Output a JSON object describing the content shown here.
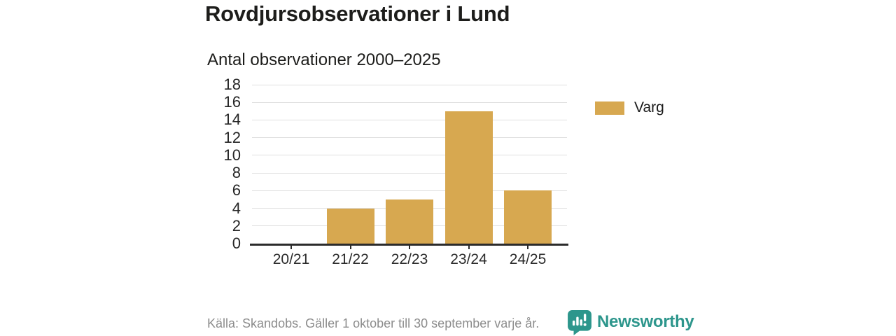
{
  "title": "Rovdjursobservationer i Lund",
  "subtitle": "Antal observationer 2000–2025",
  "legend": {
    "items": [
      {
        "label": "Varg",
        "color": "#d7a850"
      }
    ]
  },
  "footer": {
    "source": "Källa: Skandobs. Gäller 1 oktober till 30 september varje år.",
    "brand": "Newsworthy"
  },
  "colors": {
    "bar_gold": "#d7a850",
    "brand_teal": "#2d968c",
    "grid": "#e0e0e0",
    "axis": "#2b2b2b",
    "text_dark": "#1d1d1b",
    "text_muted": "#8c8c8c"
  },
  "chart_data": {
    "type": "bar",
    "categories": [
      "20/21",
      "21/22",
      "22/23",
      "23/24",
      "24/25"
    ],
    "series": [
      {
        "name": "Varg",
        "values": [
          0,
          4,
          5,
          15,
          6
        ],
        "color": "#d7a850"
      }
    ],
    "title": "Rovdjursobservationer i Lund",
    "subtitle": "Antal observationer 2000–2025",
    "xlabel": "",
    "ylabel": "",
    "ylim": [
      0,
      18
    ],
    "ytick_step": 2,
    "grid": "horizontal",
    "legend_position": "right"
  }
}
